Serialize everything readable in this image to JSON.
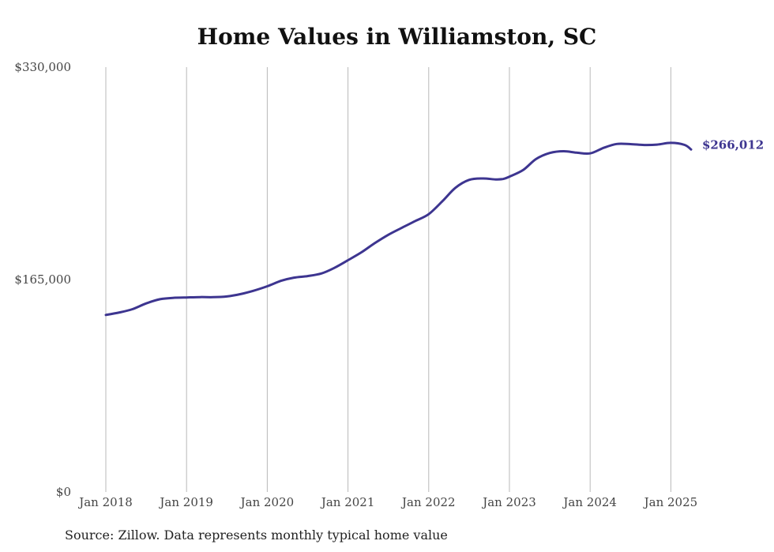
{
  "chart_data": {
    "type": "line",
    "title": "Home Values in Williamston, SC",
    "xlabel": "",
    "ylabel": "",
    "ylim": [
      0,
      330000
    ],
    "y_ticks": [
      {
        "value": 0,
        "label": "$0"
      },
      {
        "value": 165000,
        "label": "$165,000"
      },
      {
        "value": 330000,
        "label": "$330,000"
      }
    ],
    "x_ticks": [
      {
        "value": 2018,
        "label": "Jan 2018"
      },
      {
        "value": 2019,
        "label": "Jan 2019"
      },
      {
        "value": 2020,
        "label": "Jan 2020"
      },
      {
        "value": 2021,
        "label": "Jan 2021"
      },
      {
        "value": 2022,
        "label": "Jan 2022"
      },
      {
        "value": 2023,
        "label": "Jan 2023"
      },
      {
        "value": 2024,
        "label": "Jan 2024"
      },
      {
        "value": 2025,
        "label": "Jan 2025"
      }
    ],
    "xlim": [
      2018,
      2025.25
    ],
    "grid": "vertical",
    "line_color": "#3d3590",
    "end_label": "$266,012",
    "series": [
      {
        "name": "",
        "points": [
          [
            2018.0,
            137500
          ],
          [
            2018.17,
            139500
          ],
          [
            2018.33,
            142000
          ],
          [
            2018.5,
            146500
          ],
          [
            2018.67,
            149700
          ],
          [
            2018.83,
            150800
          ],
          [
            2019.0,
            151100
          ],
          [
            2019.17,
            151400
          ],
          [
            2019.33,
            151300
          ],
          [
            2019.5,
            151900
          ],
          [
            2019.67,
            153700
          ],
          [
            2019.83,
            156300
          ],
          [
            2020.0,
            159800
          ],
          [
            2020.17,
            164000
          ],
          [
            2020.33,
            166500
          ],
          [
            2020.5,
            167700
          ],
          [
            2020.67,
            169700
          ],
          [
            2020.83,
            174000
          ],
          [
            2021.0,
            180000
          ],
          [
            2021.17,
            186300
          ],
          [
            2021.33,
            193200
          ],
          [
            2021.5,
            199800
          ],
          [
            2021.67,
            205300
          ],
          [
            2021.83,
            210300
          ],
          [
            2022.0,
            215800
          ],
          [
            2022.17,
            225900
          ],
          [
            2022.33,
            236200
          ],
          [
            2022.5,
            242400
          ],
          [
            2022.67,
            243500
          ],
          [
            2022.83,
            242800
          ],
          [
            2022.92,
            243100
          ],
          [
            2023.0,
            244900
          ],
          [
            2023.17,
            250100
          ],
          [
            2023.33,
            258600
          ],
          [
            2023.5,
            263300
          ],
          [
            2023.67,
            264700
          ],
          [
            2023.83,
            263600
          ],
          [
            2024.0,
            263000
          ],
          [
            2024.17,
            267400
          ],
          [
            2024.33,
            270300
          ],
          [
            2024.5,
            270200
          ],
          [
            2024.67,
            269500
          ],
          [
            2024.83,
            269800
          ],
          [
            2025.0,
            271200
          ],
          [
            2025.17,
            269600
          ],
          [
            2025.25,
            266012
          ]
        ]
      }
    ]
  },
  "source": "Source: Zillow. Data represents monthly typical home value"
}
